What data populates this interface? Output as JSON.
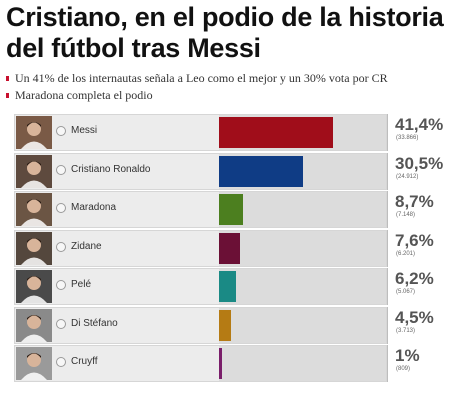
{
  "headline": "Cristiano, en el podio de la historia del fútbol tras Messi",
  "bullets": [
    "Un 41% de los internautas señala a Leo como el mejor y un 30% vota por CR",
    "Maradona completa el podio"
  ],
  "poll": {
    "options": [
      {
        "name": "Messi",
        "percent": "41,4%",
        "votes": "(33.866)",
        "share": 0.414,
        "color": "#a00d1a",
        "photo": "messi-photo"
      },
      {
        "name": "Cristiano Ronaldo",
        "percent": "30,5%",
        "votes": "(24.912)",
        "share": 0.305,
        "color": "#0f3c85",
        "photo": "cristiano-ronaldo-photo"
      },
      {
        "name": "Maradona",
        "percent": "8,7%",
        "votes": "(7.148)",
        "share": 0.087,
        "color": "#4c7f1f",
        "photo": "maradona-photo"
      },
      {
        "name": "Zidane",
        "percent": "7,6%",
        "votes": "(6.201)",
        "share": 0.076,
        "color": "#6b1036",
        "photo": "zidane-photo"
      },
      {
        "name": "Pelé",
        "percent": "6,2%",
        "votes": "(5.067)",
        "share": 0.062,
        "color": "#1a8a85",
        "photo": "pele-photo"
      },
      {
        "name": "Di Stéfano",
        "percent": "4,5%",
        "votes": "(3.713)",
        "share": 0.045,
        "color": "#b57b14",
        "photo": "di-stefano-photo"
      },
      {
        "name": "Cruyff",
        "percent": "1%",
        "votes": "(809)",
        "share": 0.01,
        "color": "#7a1e6a",
        "photo": "cruyff-photo"
      }
    ]
  }
}
